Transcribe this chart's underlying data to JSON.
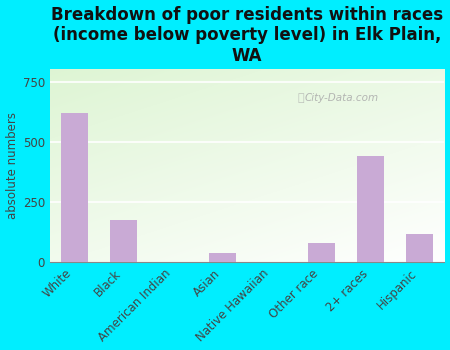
{
  "title": "Breakdown of poor residents within races\n(income below poverty level) in Elk Plain,\nWA",
  "categories": [
    "White",
    "Black",
    "American Indian",
    "Asian",
    "Native Hawaiian",
    "Other race",
    "2+ races",
    "Hispanic"
  ],
  "values": [
    620,
    175,
    0,
    40,
    0,
    80,
    440,
    115
  ],
  "bar_color": "#c9aad5",
  "ylabel": "absolute numbers",
  "ylim": [
    0,
    800
  ],
  "yticks": [
    0,
    250,
    500,
    750
  ],
  "bg_color": "#00eeff",
  "plot_bg_topleft": [
    0.87,
    0.96,
    0.83
  ],
  "plot_bg_bottomright": [
    1.0,
    1.0,
    1.0
  ],
  "watermark": "City-Data.com",
  "title_fontsize": 12,
  "label_fontsize": 8.5
}
